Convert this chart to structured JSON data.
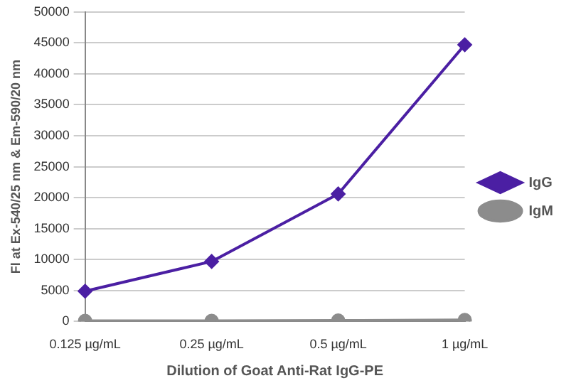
{
  "chart_data": {
    "type": "line",
    "xlabel": "Dilution of Goat Anti-Rat IgG-PE",
    "ylabel": "Fl at Ex-540/25 nm & Em-590/20 nm",
    "categories": [
      "0.125 µg/mL",
      "0.25 µg/mL",
      "0.5 µg/mL",
      "1 µg/mL"
    ],
    "series": [
      {
        "name": "IgG",
        "color": "#4b1fa3",
        "marker": "diamond",
        "values": [
          4900,
          9700,
          20600,
          44700
        ]
      },
      {
        "name": "IgM",
        "color": "#8c8c8c",
        "marker": "circle",
        "values": [
          100,
          100,
          150,
          250
        ]
      }
    ],
    "ylim": [
      0,
      50000
    ],
    "yticks": [
      0,
      5000,
      10000,
      15000,
      20000,
      25000,
      30000,
      35000,
      40000,
      45000,
      50000
    ],
    "grid": "y",
    "legend": "right",
    "line_style": "solid"
  }
}
